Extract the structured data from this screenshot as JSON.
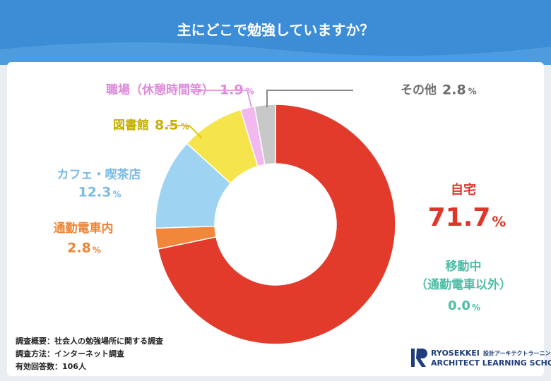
{
  "chart_data": {
    "type": "donut",
    "title": "主にどこで勉強していますか？",
    "categories": [
      "自宅",
      [
        "移動中",
        "（通勤電車以外）"
      ],
      "通勤電車内",
      "カフェ・喫茶店",
      "図書館",
      "職場（休憩時間等）",
      "その他"
    ],
    "values": [
      71.7,
      0.0,
      2.8,
      12.3,
      8.5,
      1.9,
      2.8
    ],
    "value_labels": [
      "71.7",
      "0.0",
      "2.8",
      "12.3",
      "8.5",
      "1.9",
      "2.8"
    ],
    "unit": "%",
    "colors": [
      "#e23b2b",
      "#4fc2ab",
      "#f0873a",
      "#9fd3f2",
      "#f6e44c",
      "#f2b8ef",
      "#c8c8c8"
    ],
    "label_colors": [
      "#e0362a",
      "#4dbda6",
      "#ef8434",
      "#7cbbe6",
      "#c4b000",
      "#df88dc",
      "#6e6e6e"
    ]
  },
  "notes": [
    "調査概要：社会人の勉強場所に関する調査",
    "調査方法：インターネット調査",
    "有効回答数：106人"
  ],
  "logo": {
    "name": "RYOSEKKEI",
    "sub": "設計アーキテクトラーニング",
    "school": "ARCHITECT LEARNING SCHOOL"
  }
}
